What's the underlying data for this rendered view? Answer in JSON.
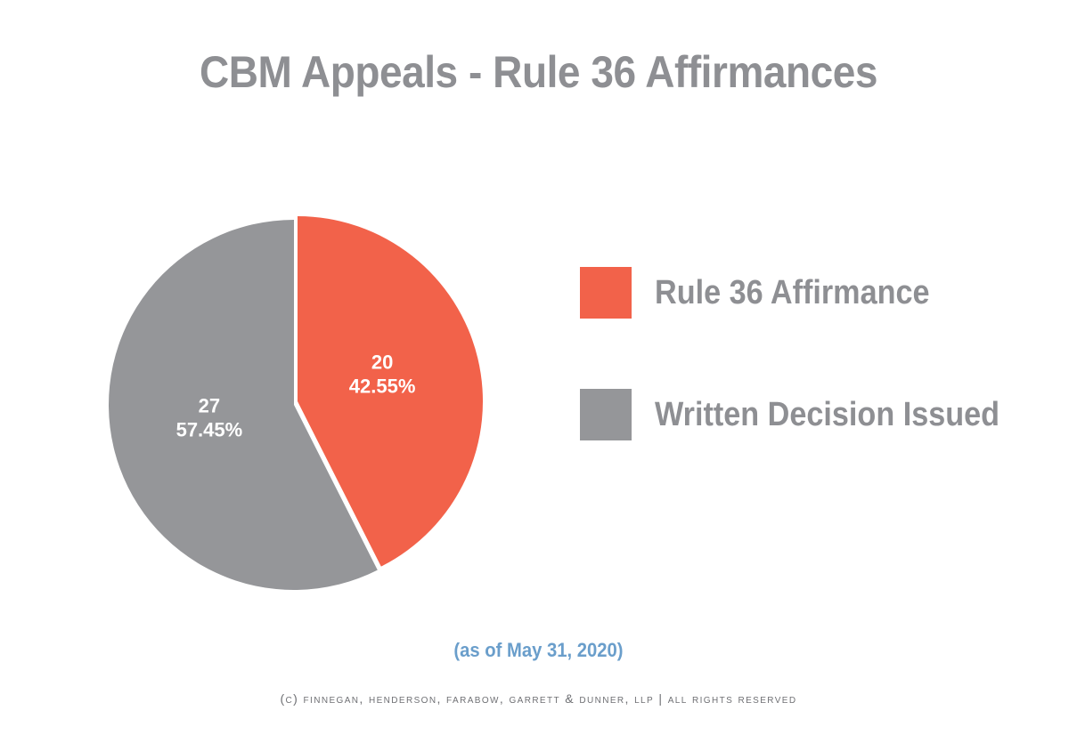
{
  "chart_data": {
    "type": "pie",
    "title": "CBM Appeals - Rule 36 Affirmances",
    "slices": [
      {
        "label": "Rule 36 Affirmance",
        "value": 20,
        "percent": "42.55%",
        "color": "#f2624a"
      },
      {
        "label": "Written Decision Issued",
        "value": 27,
        "percent": "57.45%",
        "color": "#959699"
      }
    ],
    "legend_placement": "right",
    "note": "(as of May 31, 2020)"
  },
  "footer": "(C) FINNEGAN, HENDERSON, FARABOW, GARRETT & DUNNER, LLP | ALL RIGHTS RESERVED"
}
